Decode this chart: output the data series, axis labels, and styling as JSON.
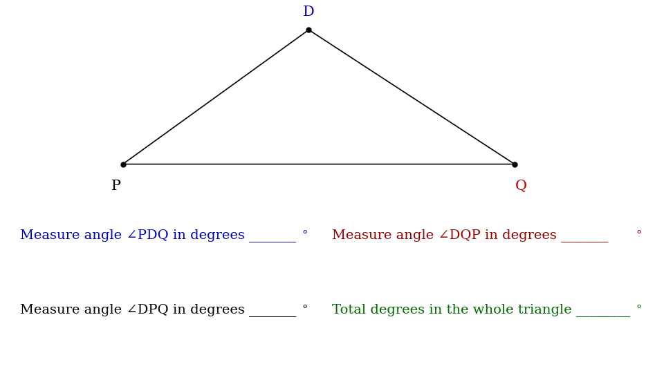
{
  "triangle": {
    "D": [
      0.465,
      0.92
    ],
    "P": [
      0.185,
      0.56
    ],
    "Q": [
      0.775,
      0.56
    ]
  },
  "point_color": "black",
  "line_color": "black",
  "label_D": "D",
  "label_P": "P",
  "label_Q": "Q",
  "label_D_color": "#0000bb",
  "label_P_color": "black",
  "label_Q_color": "#bb0000",
  "label_fontsize": 15,
  "rows": [
    {
      "left_text": "Measure angle ∠PDQ in degrees _______",
      "left_color": "#0000bb",
      "left_underline_color": "#0000bb",
      "right_text": "Measure angle ∠DQP in degrees _______",
      "right_color": "#990000",
      "right_underline_color": "#990000"
    },
    {
      "left_text": "Measure angle ∠DPQ in degrees _______",
      "left_color": "black",
      "left_underline_color": "black",
      "right_text": "Total degrees in the whole triangle ________",
      "right_color": "#006600",
      "right_underline_color": "#006600"
    }
  ],
  "degree_symbol": "°",
  "text_fontsize": 14,
  "bg_color": "white"
}
